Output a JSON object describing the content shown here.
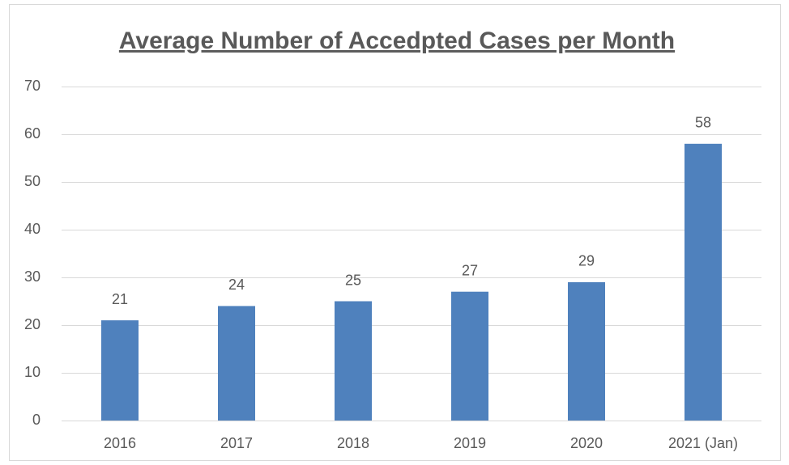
{
  "chart_data": {
    "type": "bar",
    "title": "Average Number of Accedpted Cases per Month",
    "categories": [
      "2016",
      "2017",
      "2018",
      "2019",
      "2020",
      "2021 (Jan)"
    ],
    "values": [
      21,
      24,
      25,
      27,
      29,
      58
    ],
    "color": "#4f81bd",
    "ylim": [
      0,
      70
    ],
    "yticks": [
      0,
      10,
      20,
      30,
      40,
      50,
      60,
      70
    ],
    "grid": true
  }
}
